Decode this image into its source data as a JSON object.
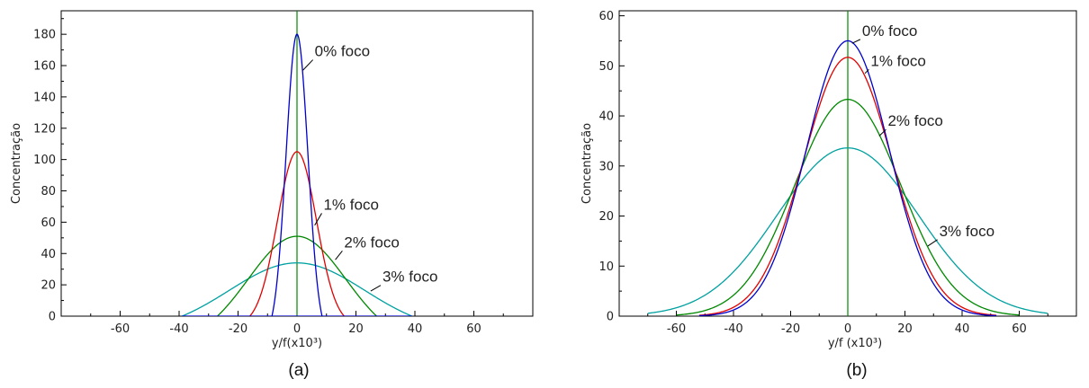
{
  "chart_data": [
    {
      "type": "line",
      "panel_label": "(a)",
      "xlabel": "y/f(x10³)",
      "ylabel": "Concentração",
      "xlim": [
        -80,
        80
      ],
      "ylim": [
        0,
        195
      ],
      "x_ticks": [
        -60,
        -40,
        -20,
        0,
        20,
        40,
        60
      ],
      "y_ticks": [
        0,
        20,
        40,
        60,
        80,
        100,
        120,
        140,
        160,
        180
      ],
      "grid": false,
      "vertical_line_x": 0,
      "series": [
        {
          "label": "0% foco",
          "color": "#0000cc",
          "kind": "trunc_gauss",
          "peak": 180,
          "sigma": 3.7,
          "edge": 8.5
        },
        {
          "label": "1% foco",
          "color": "#e00000",
          "kind": "trunc_gauss",
          "peak": 105,
          "sigma": 6.6,
          "edge": 16
        },
        {
          "label": "2% foco",
          "color": "#008800",
          "kind": "trunc_gauss",
          "peak": 51,
          "sigma": 16.5,
          "edge": 27
        },
        {
          "label": "3% foco",
          "color": "#00a0a0",
          "kind": "trunc_gauss",
          "peak": 34,
          "sigma": 23,
          "edge": 39
        }
      ],
      "annotations": [
        {
          "text": "0% foco",
          "x": 6,
          "y": 166,
          "arrow_to": [
            2,
            157
          ]
        },
        {
          "text": "1% foco",
          "x": 9,
          "y": 68,
          "arrow_to": [
            6,
            58
          ]
        },
        {
          "text": "2% foco",
          "x": 16,
          "y": 44,
          "arrow_to": [
            13,
            36
          ]
        },
        {
          "text": "3% foco",
          "x": 29,
          "y": 22,
          "arrow_to": [
            25,
            16
          ]
        }
      ]
    },
    {
      "type": "line",
      "panel_label": "(b)",
      "xlabel": "y/f (x10³)",
      "ylabel": "Concentração",
      "xlim": [
        -80,
        80
      ],
      "ylim": [
        0,
        61
      ],
      "x_ticks": [
        -60,
        -40,
        -20,
        0,
        20,
        40,
        60
      ],
      "y_ticks": [
        0,
        10,
        20,
        30,
        40,
        50,
        60
      ],
      "grid": false,
      "vertical_line_x": 0,
      "series": [
        {
          "label": "0% foco",
          "color": "#0000cc",
          "kind": "gauss",
          "peak": 55,
          "sigma": 14.5,
          "x_range": [
            -52,
            52
          ]
        },
        {
          "label": "1% foco",
          "color": "#e00000",
          "kind": "gauss",
          "peak": 51.7,
          "sigma": 15.4,
          "x_range": [
            -52,
            52
          ]
        },
        {
          "label": "2% foco",
          "color": "#008800",
          "kind": "gauss",
          "peak": 43.3,
          "sigma": 18.5,
          "x_range": [
            -60,
            60
          ]
        },
        {
          "label": "3% foco",
          "color": "#00a0a0",
          "kind": "gauss",
          "peak": 33.6,
          "sigma": 24.5,
          "x_range": [
            -70,
            70
          ]
        }
      ],
      "annotations": [
        {
          "text": "0% foco",
          "x": 5,
          "y": 56,
          "arrow_to": [
            1.5,
            54.5
          ]
        },
        {
          "text": "1% foco",
          "x": 8,
          "y": 50,
          "arrow_to": [
            6,
            48.5
          ]
        },
        {
          "text": "2% foco",
          "x": 14,
          "y": 38,
          "arrow_to": [
            11,
            36
          ]
        },
        {
          "text": "3% foco",
          "x": 32,
          "y": 16,
          "arrow_to": [
            28,
            14
          ]
        }
      ]
    }
  ]
}
